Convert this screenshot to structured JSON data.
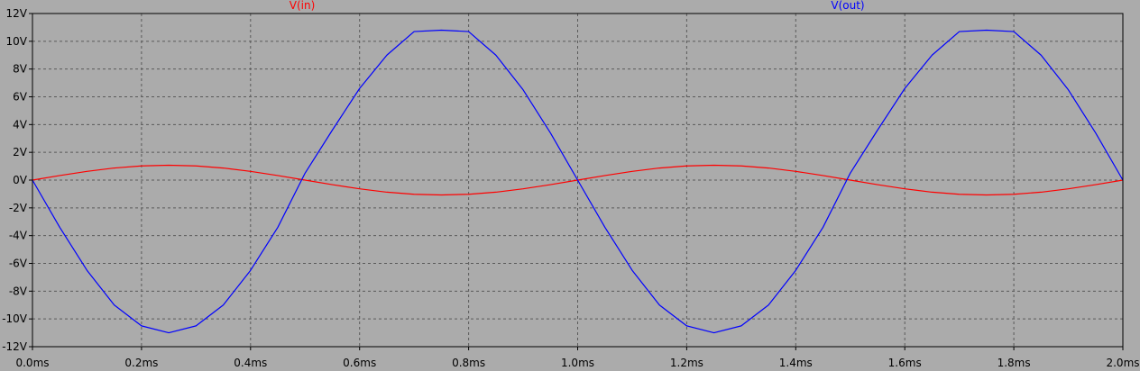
{
  "chart_data": {
    "type": "line",
    "title": "",
    "xlabel": "",
    "ylabel": "",
    "xlim": [
      0,
      2
    ],
    "ylim": [
      -12,
      12
    ],
    "x_unit": "ms",
    "y_unit": "V",
    "grid": true,
    "background_color": "#ababab",
    "x_ticks": [
      "0.0ms",
      "0.2ms",
      "0.4ms",
      "0.6ms",
      "0.8ms",
      "1.0ms",
      "1.2ms",
      "1.4ms",
      "1.6ms",
      "1.8ms",
      "2.0ms"
    ],
    "y_ticks": [
      "12V",
      "10V",
      "8V",
      "6V",
      "4V",
      "2V",
      "0V",
      "-2V",
      "-4V",
      "-6V",
      "-8V",
      "-10V",
      "-12V"
    ],
    "x": [
      0,
      0.05,
      0.1,
      0.15,
      0.2,
      0.25,
      0.3,
      0.35,
      0.4,
      0.45,
      0.5,
      0.55,
      0.6,
      0.65,
      0.7,
      0.75,
      0.8,
      0.85,
      0.9,
      0.95,
      1.0,
      1.05,
      1.1,
      1.15,
      1.2,
      1.25,
      1.3,
      1.35,
      1.4,
      1.45,
      1.5,
      1.55,
      1.6,
      1.65,
      1.7,
      1.75,
      1.8,
      1.85,
      1.9,
      1.95,
      2.0
    ],
    "series": [
      {
        "name": "V(in)",
        "color": "#ff0000",
        "values": [
          0,
          0.33,
          0.63,
          0.87,
          1.02,
          1.07,
          1.02,
          0.87,
          0.63,
          0.33,
          0,
          -0.33,
          -0.63,
          -0.87,
          -1.02,
          -1.07,
          -1.02,
          -0.87,
          -0.63,
          -0.33,
          0,
          0.33,
          0.63,
          0.87,
          1.02,
          1.07,
          1.02,
          0.87,
          0.63,
          0.33,
          0,
          -0.33,
          -0.63,
          -0.87,
          -1.02,
          -1.07,
          -1.02,
          -0.87,
          -0.63,
          -0.33,
          0
        ]
      },
      {
        "name": "V(out)",
        "color": "#0000ff",
        "values": [
          0,
          -3.4,
          -6.5,
          -9.0,
          -10.5,
          -11.0,
          -10.5,
          -9.0,
          -6.5,
          -3.4,
          0.5,
          3.6,
          6.6,
          9.0,
          10.7,
          10.8,
          10.7,
          9.0,
          6.5,
          3.4,
          0,
          -3.4,
          -6.5,
          -9.0,
          -10.5,
          -11.0,
          -10.5,
          -9.0,
          -6.5,
          -3.4,
          0.5,
          3.6,
          6.6,
          9.0,
          10.7,
          10.8,
          10.7,
          9.0,
          6.5,
          3.4,
          0
        ]
      }
    ],
    "legend_position": "top"
  }
}
